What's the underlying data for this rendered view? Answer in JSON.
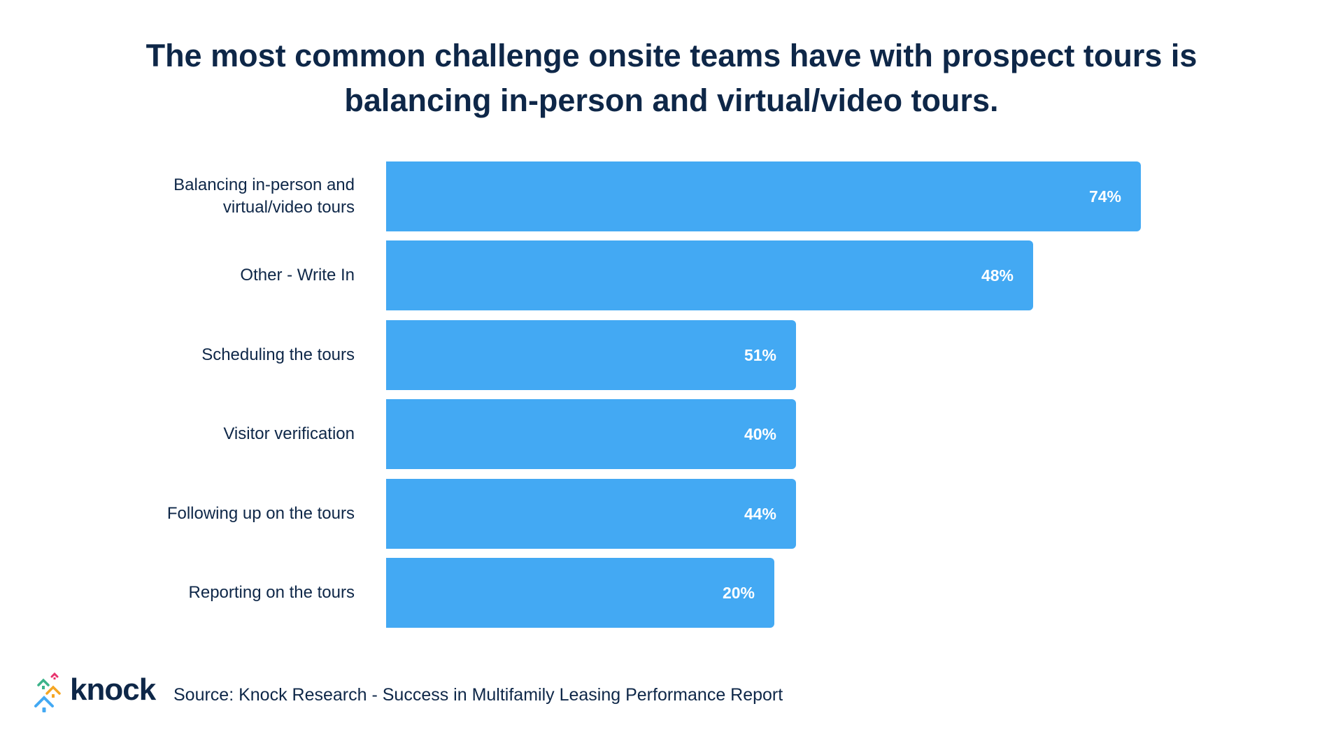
{
  "chart_data": {
    "type": "bar",
    "orientation": "horizontal",
    "title": [
      "The most common challenge onsite teams have with prospect tours is",
      "balancing in-person and virtual/video tours."
    ],
    "categories": [
      [
        "Balancing in-person and",
        "virtual/video tours"
      ],
      [
        "Other - Write In"
      ],
      [
        "Scheduling the tours"
      ],
      [
        "Visitor verification"
      ],
      [
        "Following up on the tours"
      ],
      [
        "Reporting on the tours"
      ]
    ],
    "values": [
      74,
      48,
      51,
      40,
      44,
      20
    ],
    "value_labels": [
      "74%",
      "48%",
      "51%",
      "40%",
      "44%",
      "20%"
    ],
    "unit": "%",
    "xlabel": "",
    "ylabel": "",
    "grid": false,
    "bar_color": "#43a9f3"
  },
  "footer": {
    "logo_text": "knock",
    "source": "Source: Knock Research - Success in Multifamily Leasing Performance Report"
  }
}
